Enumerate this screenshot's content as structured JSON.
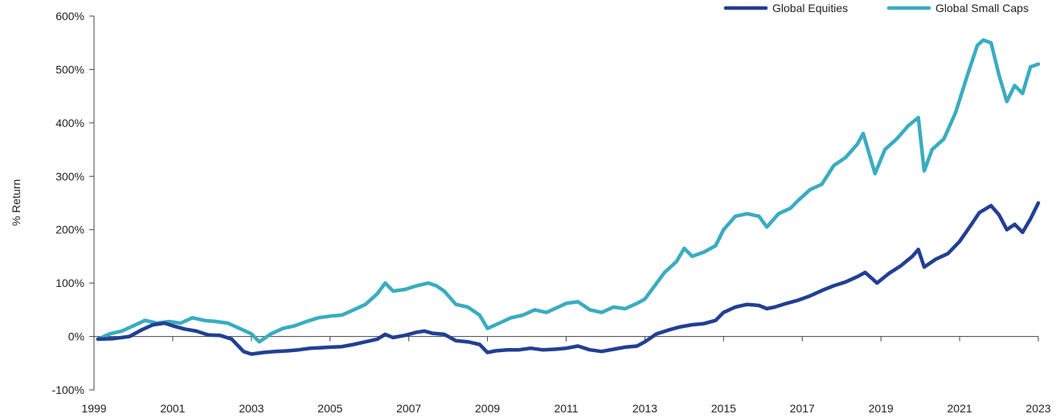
{
  "chart_data": {
    "type": "line",
    "ylabel": "% Return",
    "ylim": [
      -100,
      600
    ],
    "xlim": [
      1999,
      2023
    ],
    "x_ticks": [
      "1999",
      "2001",
      "2003",
      "2005",
      "2007",
      "2009",
      "2011",
      "2013",
      "2015",
      "2017",
      "2019",
      "2021",
      "2023"
    ],
    "y_ticks": [
      "-100%",
      "0%",
      "100%",
      "200%",
      "300%",
      "400%",
      "500%",
      "600%"
    ],
    "y_tick_values": [
      -100,
      0,
      100,
      200,
      300,
      400,
      500,
      600
    ],
    "grid": false,
    "legend_position": "top-right",
    "series": [
      {
        "name": "Global Equities",
        "color": "#223f93",
        "points": [
          [
            1999.1,
            -5
          ],
          [
            1999.5,
            -4
          ],
          [
            1999.9,
            0
          ],
          [
            2000.2,
            12
          ],
          [
            2000.5,
            22
          ],
          [
            2000.8,
            25
          ],
          [
            2001.0,
            20
          ],
          [
            2001.3,
            14
          ],
          [
            2001.6,
            10
          ],
          [
            2001.9,
            3
          ],
          [
            2002.2,
            2
          ],
          [
            2002.5,
            -5
          ],
          [
            2002.8,
            -28
          ],
          [
            2003.0,
            -33
          ],
          [
            2003.3,
            -30
          ],
          [
            2003.6,
            -28
          ],
          [
            2003.9,
            -27
          ],
          [
            2004.2,
            -25
          ],
          [
            2004.5,
            -22
          ],
          [
            2004.8,
            -21
          ],
          [
            2005.0,
            -20
          ],
          [
            2005.3,
            -19
          ],
          [
            2005.6,
            -15
          ],
          [
            2005.9,
            -10
          ],
          [
            2006.2,
            -5
          ],
          [
            2006.4,
            4
          ],
          [
            2006.6,
            -2
          ],
          [
            2006.9,
            2
          ],
          [
            2007.2,
            8
          ],
          [
            2007.4,
            10
          ],
          [
            2007.6,
            6
          ],
          [
            2007.9,
            4
          ],
          [
            2008.2,
            -8
          ],
          [
            2008.5,
            -10
          ],
          [
            2008.8,
            -15
          ],
          [
            2009.0,
            -30
          ],
          [
            2009.2,
            -27
          ],
          [
            2009.5,
            -25
          ],
          [
            2009.8,
            -25
          ],
          [
            2010.1,
            -22
          ],
          [
            2010.4,
            -25
          ],
          [
            2010.7,
            -24
          ],
          [
            2011.0,
            -22
          ],
          [
            2011.3,
            -18
          ],
          [
            2011.6,
            -25
          ],
          [
            2011.9,
            -28
          ],
          [
            2012.2,
            -24
          ],
          [
            2012.5,
            -20
          ],
          [
            2012.8,
            -18
          ],
          [
            2013.0,
            -10
          ],
          [
            2013.3,
            5
          ],
          [
            2013.6,
            12
          ],
          [
            2013.9,
            18
          ],
          [
            2014.2,
            22
          ],
          [
            2014.5,
            24
          ],
          [
            2014.8,
            30
          ],
          [
            2015.0,
            45
          ],
          [
            2015.3,
            55
          ],
          [
            2015.6,
            60
          ],
          [
            2015.9,
            58
          ],
          [
            2016.1,
            52
          ],
          [
            2016.3,
            55
          ],
          [
            2016.6,
            62
          ],
          [
            2016.9,
            68
          ],
          [
            2017.2,
            76
          ],
          [
            2017.5,
            86
          ],
          [
            2017.8,
            95
          ],
          [
            2018.1,
            102
          ],
          [
            2018.4,
            112
          ],
          [
            2018.6,
            120
          ],
          [
            2018.9,
            100
          ],
          [
            2019.2,
            118
          ],
          [
            2019.5,
            132
          ],
          [
            2019.8,
            150
          ],
          [
            2019.95,
            163
          ],
          [
            2020.1,
            130
          ],
          [
            2020.4,
            145
          ],
          [
            2020.7,
            155
          ],
          [
            2021.0,
            178
          ],
          [
            2021.3,
            210
          ],
          [
            2021.5,
            232
          ],
          [
            2021.8,
            245
          ],
          [
            2022.0,
            228
          ],
          [
            2022.2,
            200
          ],
          [
            2022.4,
            210
          ],
          [
            2022.6,
            195
          ],
          [
            2022.8,
            220
          ],
          [
            2023.0,
            250
          ]
        ]
      },
      {
        "name": "Global Small Caps",
        "color": "#3aacc0",
        "points": [
          [
            1999.1,
            -5
          ],
          [
            1999.4,
            5
          ],
          [
            1999.7,
            10
          ],
          [
            2000.0,
            20
          ],
          [
            2000.3,
            30
          ],
          [
            2000.6,
            25
          ],
          [
            2000.9,
            28
          ],
          [
            2001.2,
            25
          ],
          [
            2001.5,
            35
          ],
          [
            2001.8,
            30
          ],
          [
            2002.1,
            28
          ],
          [
            2002.4,
            25
          ],
          [
            2002.7,
            15
          ],
          [
            2003.0,
            5
          ],
          [
            2003.2,
            -10
          ],
          [
            2003.5,
            5
          ],
          [
            2003.8,
            15
          ],
          [
            2004.1,
            20
          ],
          [
            2004.4,
            28
          ],
          [
            2004.7,
            35
          ],
          [
            2005.0,
            38
          ],
          [
            2005.3,
            40
          ],
          [
            2005.6,
            50
          ],
          [
            2005.9,
            60
          ],
          [
            2006.2,
            80
          ],
          [
            2006.4,
            100
          ],
          [
            2006.6,
            85
          ],
          [
            2006.9,
            88
          ],
          [
            2007.2,
            95
          ],
          [
            2007.5,
            100
          ],
          [
            2007.7,
            95
          ],
          [
            2007.9,
            85
          ],
          [
            2008.2,
            60
          ],
          [
            2008.5,
            55
          ],
          [
            2008.8,
            40
          ],
          [
            2009.0,
            15
          ],
          [
            2009.3,
            25
          ],
          [
            2009.6,
            35
          ],
          [
            2009.9,
            40
          ],
          [
            2010.2,
            50
          ],
          [
            2010.5,
            45
          ],
          [
            2010.8,
            55
          ],
          [
            2011.0,
            62
          ],
          [
            2011.3,
            65
          ],
          [
            2011.6,
            50
          ],
          [
            2011.9,
            45
          ],
          [
            2012.2,
            55
          ],
          [
            2012.5,
            52
          ],
          [
            2012.8,
            62
          ],
          [
            2013.0,
            70
          ],
          [
            2013.2,
            90
          ],
          [
            2013.5,
            120
          ],
          [
            2013.8,
            140
          ],
          [
            2014.0,
            165
          ],
          [
            2014.2,
            150
          ],
          [
            2014.5,
            158
          ],
          [
            2014.8,
            170
          ],
          [
            2015.0,
            200
          ],
          [
            2015.3,
            225
          ],
          [
            2015.6,
            230
          ],
          [
            2015.9,
            225
          ],
          [
            2016.1,
            205
          ],
          [
            2016.4,
            230
          ],
          [
            2016.7,
            240
          ],
          [
            2016.9,
            255
          ],
          [
            2017.2,
            275
          ],
          [
            2017.5,
            285
          ],
          [
            2017.8,
            320
          ],
          [
            2018.1,
            335
          ],
          [
            2018.4,
            360
          ],
          [
            2018.55,
            380
          ],
          [
            2018.75,
            330
          ],
          [
            2018.85,
            305
          ],
          [
            2019.1,
            350
          ],
          [
            2019.4,
            370
          ],
          [
            2019.7,
            395
          ],
          [
            2019.95,
            410
          ],
          [
            2020.1,
            310
          ],
          [
            2020.3,
            350
          ],
          [
            2020.6,
            370
          ],
          [
            2020.9,
            420
          ],
          [
            2021.2,
            490
          ],
          [
            2021.45,
            545
          ],
          [
            2021.6,
            555
          ],
          [
            2021.8,
            550
          ],
          [
            2022.0,
            490
          ],
          [
            2022.2,
            440
          ],
          [
            2022.4,
            470
          ],
          [
            2022.6,
            455
          ],
          [
            2022.8,
            505
          ],
          [
            2023.0,
            510
          ]
        ]
      }
    ]
  }
}
